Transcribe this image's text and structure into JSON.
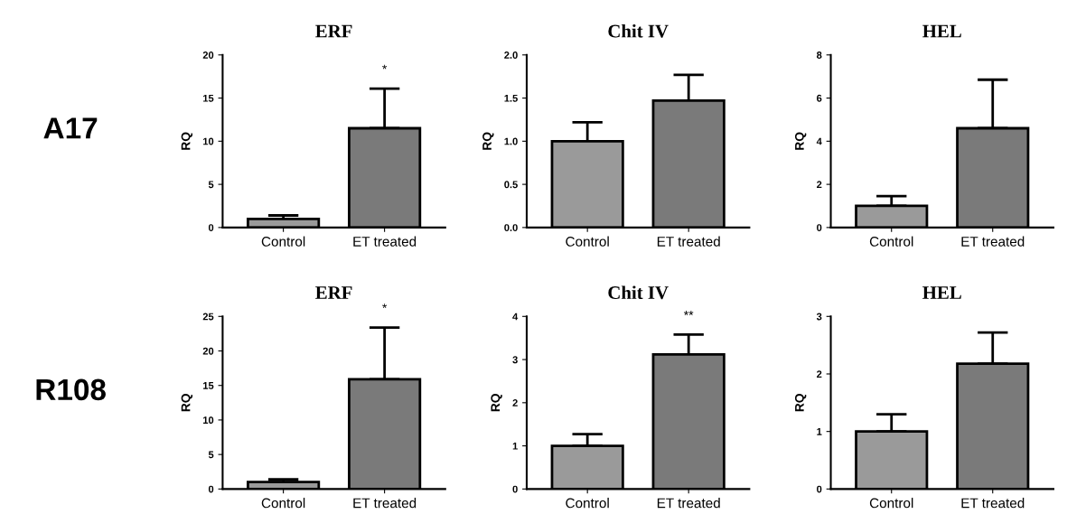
{
  "chart_data": [
    {
      "type": "bar",
      "title": "ERF",
      "ylabel": "RQ",
      "categories": [
        "Control",
        "ET treated"
      ],
      "values": [
        1.0,
        11.5
      ],
      "colors": [
        "#9a9a9a",
        "#7a7a7a"
      ],
      "errors": [
        [
          1.0,
          1.4
        ],
        [
          11.5,
          16.1
        ]
      ],
      "ylim": [
        0,
        20
      ],
      "yticks": [
        0,
        5,
        10,
        15,
        20
      ],
      "annotations": [
        "A17",
        {
          "text": "*",
          "x": "ET treated",
          "y": 16.1
        }
      ]
    },
    {
      "type": "bar",
      "title": "Chit IV",
      "ylabel": "RQ",
      "categories": [
        "Control",
        "ET treated"
      ],
      "values": [
        1.0,
        1.47
      ],
      "colors": [
        "#9a9a9a",
        "#7a7a7a"
      ],
      "errors": [
        [
          1.0,
          1.22
        ],
        [
          1.47,
          1.77
        ]
      ],
      "ylim": [
        0,
        2
      ],
      "yticks": [
        {
          "value": 0,
          "label": "0.0"
        },
        0.5,
        {
          "value": 1,
          "label": "1.0"
        },
        1.5,
        {
          "value": 2,
          "label": "2.0"
        }
      ]
    },
    {
      "type": "bar",
      "title": "HEL",
      "ylabel": "RQ",
      "categories": [
        "Control",
        "ET treated"
      ],
      "values": [
        1.0,
        4.6
      ],
      "colors": [
        "#9a9a9a",
        "#7a7a7a"
      ],
      "errors": [
        [
          1.0,
          1.45
        ],
        [
          4.6,
          6.85
        ]
      ],
      "ylim": [
        0,
        8
      ],
      "yticks": [
        0,
        2,
        4,
        6,
        8
      ]
    },
    {
      "type": "bar",
      "title": "ERF",
      "ylabel": "RQ",
      "categories": [
        "Control",
        "ET treated"
      ],
      "values": [
        1.0,
        15.9
      ],
      "colors": [
        "#9a9a9a",
        "#7a7a7a"
      ],
      "errors": [
        [
          1.0,
          1.4
        ],
        [
          15.9,
          23.4
        ]
      ],
      "ylim": [
        0,
        25
      ],
      "yticks": [
        0,
        5,
        10,
        15,
        20,
        25
      ],
      "annotations": [
        "R108",
        {
          "text": "*",
          "x": "ET treated",
          "y": 23.4
        }
      ]
    },
    {
      "type": "bar",
      "title": "Chit IV",
      "ylabel": "RQ",
      "categories": [
        "Control",
        "ET treated"
      ],
      "values": [
        1.0,
        3.12
      ],
      "colors": [
        "#9a9a9a",
        "#7a7a7a"
      ],
      "errors": [
        [
          1.0,
          1.27
        ],
        [
          3.12,
          3.58
        ]
      ],
      "ylim": [
        0,
        4
      ],
      "yticks": [
        0,
        1,
        2,
        3,
        4
      ],
      "annotations": [
        {
          "text": "**",
          "x": "ET treated",
          "y": 3.58
        }
      ]
    },
    {
      "type": "bar",
      "title": "HEL",
      "ylabel": "RQ",
      "categories": [
        "Control",
        "ET treated"
      ],
      "values": [
        1.0,
        2.18
      ],
      "colors": [
        "#9a9a9a",
        "#7a7a7a"
      ],
      "errors": [
        [
          1.0,
          1.3
        ],
        [
          2.18,
          2.72
        ]
      ],
      "ylim": [
        0,
        3
      ],
      "yticks": [
        0,
        1,
        2,
        3
      ]
    }
  ]
}
